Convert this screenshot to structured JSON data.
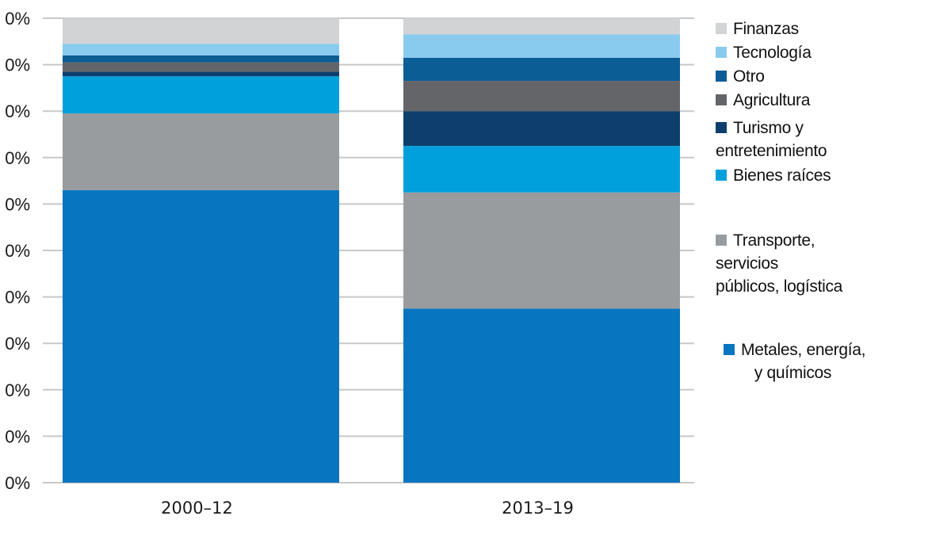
{
  "chart_data": {
    "type": "bar",
    "stacked": true,
    "categories": [
      "2000–12",
      "2013–19"
    ],
    "y_tick_labels": [
      "0%",
      "0%",
      "0%",
      "0%",
      "0%",
      "0%",
      "0%",
      "0%",
      "0%",
      "0%",
      "0%"
    ],
    "ylim": [
      0,
      100
    ],
    "grid": true,
    "legend_position": "right",
    "series": [
      {
        "name": "Metales, energía,\n       y químicos",
        "color": "#0775bf",
        "values": [
          63,
          37.5
        ]
      },
      {
        "name": "Transporte,\nservicios\npúblicos, logística",
        "color": "#999c9f",
        "values": [
          16.5,
          25
        ]
      },
      {
        "name": "Bienes raíces",
        "color": "#00a0dd",
        "values": [
          8,
          10
        ]
      },
      {
        "name": "Turismo y\nentretenimiento",
        "color": "#0e3f6c",
        "values": [
          1,
          7.5
        ]
      },
      {
        "name": "Agricultura",
        "color": "#646569",
        "values": [
          2,
          6.5
        ]
      },
      {
        "name": "Otro",
        "color": "#0b5d96",
        "values": [
          1.5,
          5
        ]
      },
      {
        "name": "Tecnología",
        "color": "#88cbee",
        "values": [
          2.5,
          5
        ]
      },
      {
        "name": "Finanzas",
        "color": "#d1d3d4",
        "values": [
          5.5,
          3.5
        ]
      }
    ]
  }
}
